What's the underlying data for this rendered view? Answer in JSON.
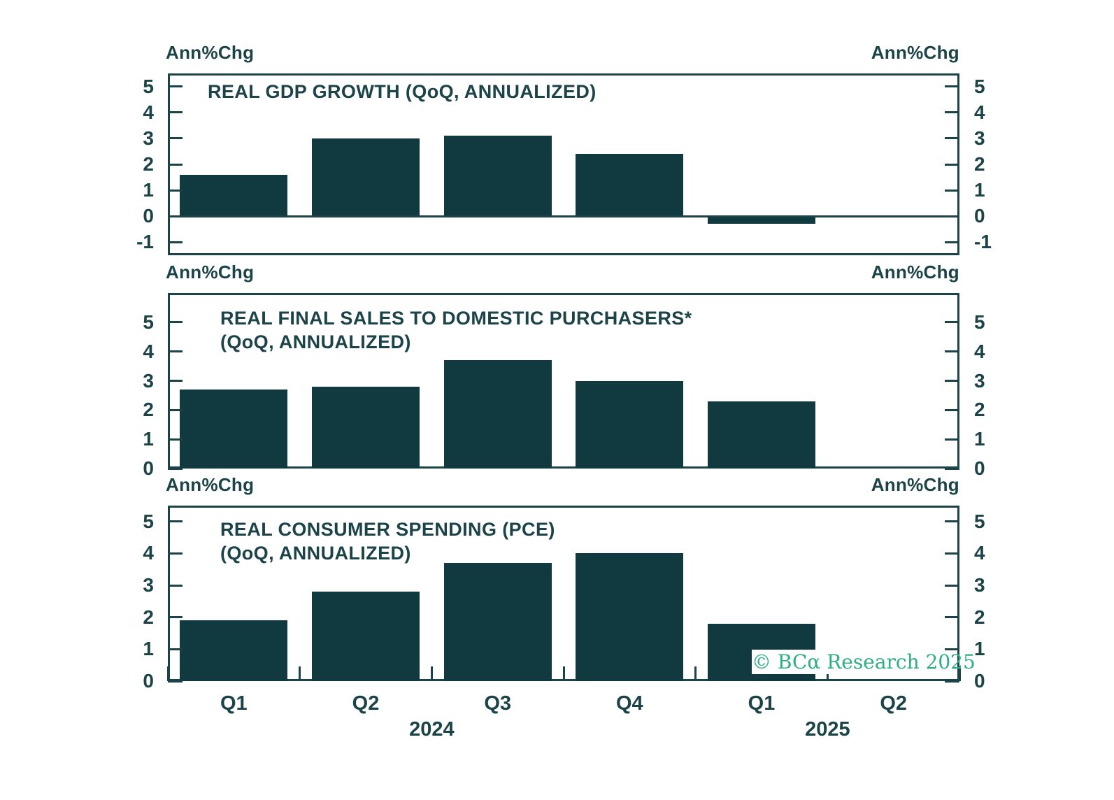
{
  "figure": {
    "axis_unit_label": "Ann%Chg",
    "watermark": "© BCα Research 2025"
  },
  "colors": {
    "bar": "#103940",
    "line": "#1c4348",
    "text": "#1c4348",
    "watermark_green": "#2daf81",
    "background": "#ffffff"
  },
  "x_axis": {
    "quarters": [
      "Q1",
      "Q2",
      "Q3",
      "Q4",
      "Q1",
      "Q2"
    ],
    "years": [
      {
        "label": "2024",
        "boundary_index": 2
      },
      {
        "label": "2025",
        "boundary_index": 5
      }
    ]
  },
  "chart_data": [
    {
      "type": "bar",
      "title_lines": [
        "REAL GDP GROWTH (QoQ, ANNUALIZED)"
      ],
      "categories": [
        "2024 Q1",
        "2024 Q2",
        "2024 Q3",
        "2024 Q4",
        "2025 Q1",
        "2025 Q2"
      ],
      "values": [
        1.6,
        3.0,
        3.1,
        2.4,
        -0.3,
        null
      ],
      "ylabel_left": "Ann%Chg",
      "ylabel_right": "Ann%Chg",
      "ylim": [
        -1.5,
        5.5
      ],
      "yticks": [
        -1,
        0,
        1,
        2,
        3,
        4,
        5
      ],
      "zero_line": true,
      "grid": false,
      "legend": false
    },
    {
      "type": "bar",
      "title_lines": [
        "REAL FINAL SALES TO DOMESTIC PURCHASERS*",
        "(QoQ, ANNUALIZED)"
      ],
      "categories": [
        "2024 Q1",
        "2024 Q2",
        "2024 Q3",
        "2024 Q4",
        "2025 Q1",
        "2025 Q2"
      ],
      "values": [
        2.7,
        2.8,
        3.7,
        3.0,
        2.3,
        null
      ],
      "ylabel_left": "Ann%Chg",
      "ylabel_right": "Ann%Chg",
      "ylim": [
        0,
        6
      ],
      "yticks": [
        0,
        1,
        2,
        3,
        4,
        5
      ],
      "zero_line": false,
      "grid": false,
      "legend": false
    },
    {
      "type": "bar",
      "title_lines": [
        "REAL CONSUMER SPENDING (PCE)",
        "(QoQ, ANNUALIZED)"
      ],
      "categories": [
        "2024 Q1",
        "2024 Q2",
        "2024 Q3",
        "2024 Q4",
        "2025 Q1",
        "2025 Q2"
      ],
      "values": [
        1.9,
        2.8,
        3.7,
        4.0,
        1.8,
        null
      ],
      "ylabel_left": "Ann%Chg",
      "ylabel_right": "Ann%Chg",
      "ylim": [
        0,
        5.5
      ],
      "yticks": [
        0,
        1,
        2,
        3,
        4,
        5
      ],
      "zero_line": false,
      "grid": false,
      "legend": false
    }
  ]
}
